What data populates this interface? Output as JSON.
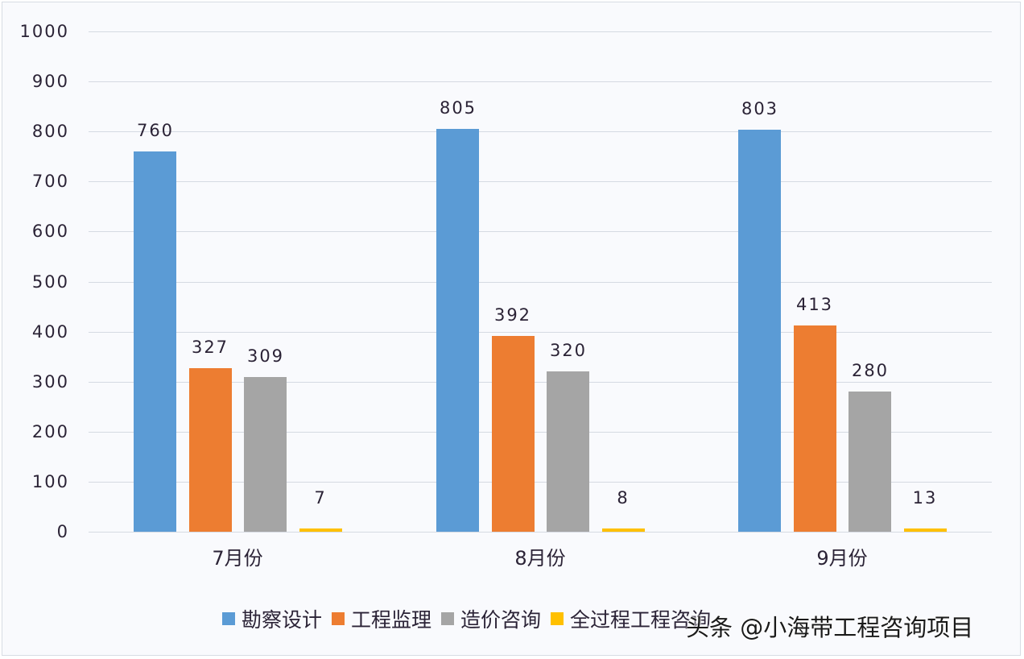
{
  "chart_data": {
    "type": "bar",
    "title": "",
    "xlabel": "",
    "ylabel": "",
    "ylim": [
      0,
      1000
    ],
    "grid": true,
    "legend_position": "bottom",
    "y_ticks": [
      "1000",
      "900",
      "800",
      "700",
      "600",
      "500",
      "400",
      "300",
      "200",
      "100",
      "0"
    ],
    "categories": [
      "7月份",
      "8月份",
      "9月份"
    ],
    "series": [
      {
        "name": "勘察设计",
        "color": "#5b9bd5",
        "values": [
          760,
          805,
          803
        ]
      },
      {
        "name": "工程监理",
        "color": "#ed7d31",
        "values": [
          327,
          392,
          413
        ]
      },
      {
        "name": "造价咨询",
        "color": "#a5a5a5",
        "values": [
          309,
          320,
          280
        ]
      },
      {
        "name": "全过程工程咨询",
        "color": "#ffc000",
        "values": [
          7,
          8,
          13
        ]
      }
    ],
    "data_labels": [
      [
        "760",
        "327",
        "309",
        "7"
      ],
      [
        "805",
        "392",
        "320",
        "8"
      ],
      [
        "803",
        "413",
        "280",
        "13"
      ]
    ]
  },
  "watermark": "头条 @小海带工程咨询项目"
}
